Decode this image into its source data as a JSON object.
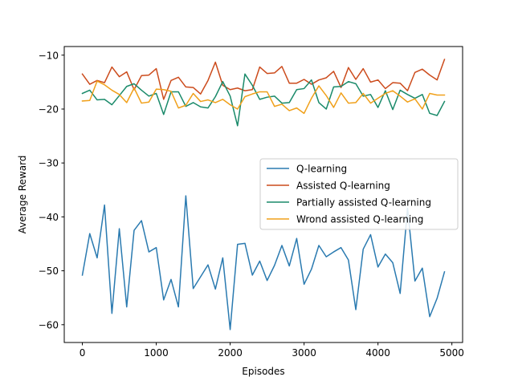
{
  "chart_data": {
    "type": "line",
    "title": "",
    "xlabel": "Episodes",
    "ylabel": "Average Reward",
    "xlim": [
      -245,
      5145
    ],
    "ylim": [
      -63.3,
      -8.4
    ],
    "xticks": [
      0,
      1000,
      2000,
      3000,
      4000,
      5000
    ],
    "xtick_labels": [
      "0",
      "1000",
      "2000",
      "3000",
      "4000",
      "5000"
    ],
    "yticks": [
      -60,
      -50,
      -40,
      -30,
      -20,
      -10
    ],
    "ytick_labels": [
      "−60",
      "−50",
      "−40",
      "−30",
      "−20",
      "−10"
    ],
    "grid": false,
    "legend_position": "center-right",
    "x": [
      0,
      100,
      200,
      300,
      400,
      500,
      600,
      700,
      800,
      900,
      1000,
      1100,
      1200,
      1300,
      1400,
      1500,
      1600,
      1700,
      1800,
      1900,
      2000,
      2100,
      2200,
      2300,
      2400,
      2500,
      2600,
      2700,
      2800,
      2900,
      3000,
      3100,
      3200,
      3300,
      3400,
      3500,
      3600,
      3700,
      3800,
      3900,
      4000,
      4100,
      4200,
      4300,
      4400,
      4500,
      4600,
      4700,
      4800,
      4900
    ],
    "series": [
      {
        "name": "Q-learning",
        "color": "#2a7ab0",
        "values": [
          -50.8,
          -43.1,
          -47.6,
          -37.8,
          -57.9,
          -42.2,
          -56.7,
          -42.5,
          -40.7,
          -46.5,
          -45.7,
          -55.4,
          -51.6,
          -56.7,
          -36.1,
          -53.3,
          -51.1,
          -48.9,
          -53.4,
          -47.6,
          -60.9,
          -45.1,
          -44.9,
          -50.8,
          -48.2,
          -51.8,
          -49.0,
          -45.3,
          -49.1,
          -44.0,
          -52.5,
          -49.7,
          -45.3,
          -47.4,
          -46.5,
          -45.7,
          -48.0,
          -57.2,
          -46.0,
          -43.3,
          -49.3,
          -46.9,
          -48.5,
          -54.2,
          -38.4,
          -51.9,
          -49.5,
          -58.5,
          -55.1,
          -50.2
        ]
      },
      {
        "name": "Assisted Q-learning",
        "color": "#cc4b1c",
        "values": [
          -13.5,
          -15.4,
          -14.7,
          -15.1,
          -12.2,
          -14.0,
          -13.1,
          -16.4,
          -13.8,
          -13.7,
          -12.5,
          -18.2,
          -14.7,
          -14.1,
          -15.9,
          -16.0,
          -17.2,
          -14.7,
          -11.3,
          -15.6,
          -16.4,
          -16.1,
          -16.6,
          -16.4,
          -12.2,
          -13.4,
          -13.3,
          -12.1,
          -15.2,
          -15.2,
          -14.5,
          -15.4,
          -14.6,
          -14.2,
          -13.0,
          -16.0,
          -12.3,
          -14.5,
          -12.5,
          -15.0,
          -14.6,
          -16.2,
          -15.1,
          -15.2,
          -16.6,
          -13.2,
          -12.6,
          -13.7,
          -14.6,
          -10.8
        ]
      },
      {
        "name": "Partially assisted Q-learning",
        "color": "#1a8a6a",
        "values": [
          -17.1,
          -16.5,
          -18.3,
          -18.2,
          -19.2,
          -17.5,
          -15.8,
          -15.3,
          -16.5,
          -17.6,
          -17.1,
          -21.0,
          -16.8,
          -16.8,
          -19.5,
          -18.8,
          -19.6,
          -19.8,
          -17.7,
          -14.9,
          -17.6,
          -23.1,
          -13.5,
          -15.6,
          -18.2,
          -17.8,
          -17.6,
          -18.9,
          -18.8,
          -16.4,
          -16.2,
          -14.6,
          -18.8,
          -20.0,
          -15.9,
          -15.8,
          -14.9,
          -15.3,
          -17.6,
          -17.3,
          -19.7,
          -16.6,
          -20.1,
          -16.5,
          -17.3,
          -18.0,
          -17.3,
          -20.8,
          -21.2,
          -18.6
        ]
      },
      {
        "name": "Wrond assisted Q-learning",
        "color": "#f0a01a",
        "values": [
          -18.5,
          -18.4,
          -14.8,
          -15.5,
          -16.5,
          -17.3,
          -18.8,
          -16.1,
          -18.9,
          -18.7,
          -16.3,
          -16.4,
          -16.7,
          -19.8,
          -19.3,
          -17.1,
          -18.6,
          -18.3,
          -18.8,
          -18.2,
          -19.2,
          -20.0,
          -17.7,
          -17.2,
          -16.8,
          -16.8,
          -19.5,
          -19.1,
          -20.3,
          -19.8,
          -20.8,
          -18.0,
          -15.7,
          -17.5,
          -19.7,
          -17.0,
          -18.9,
          -18.8,
          -17.1,
          -18.9,
          -18.0,
          -17.1,
          -16.6,
          -17.6,
          -18.7,
          -18.1,
          -20.0,
          -17.1,
          -17.4,
          -17.4
        ]
      }
    ]
  }
}
